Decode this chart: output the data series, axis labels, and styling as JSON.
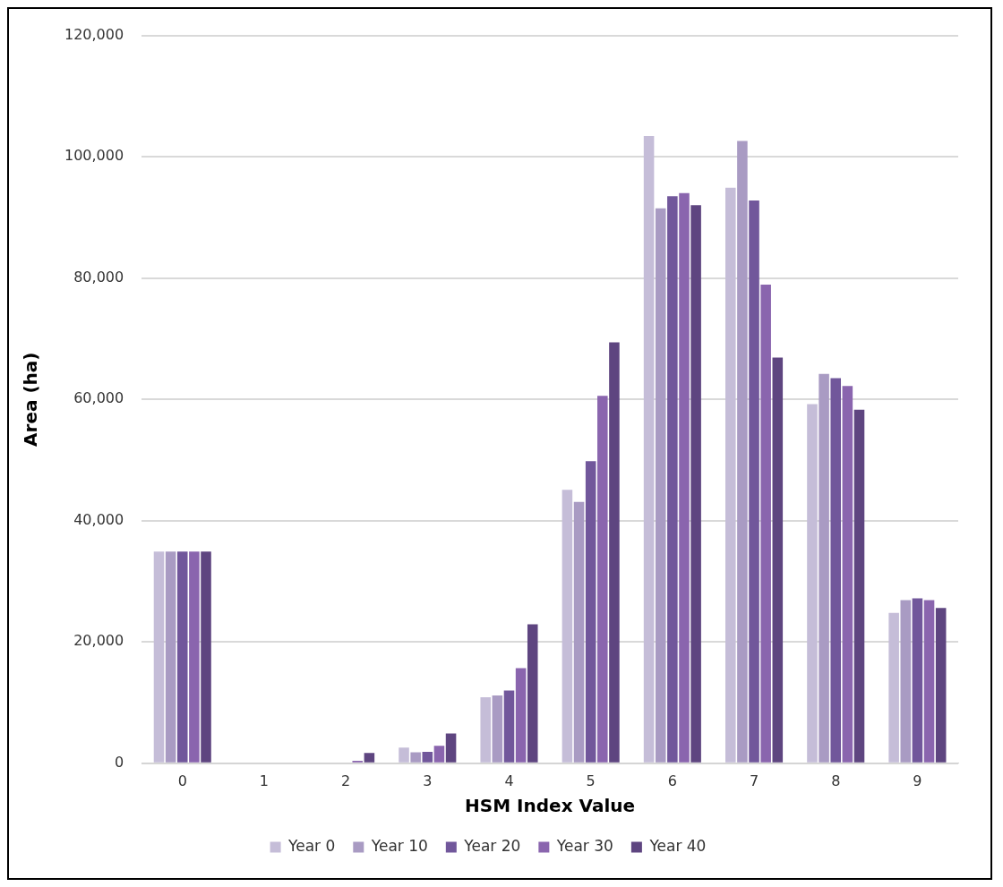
{
  "chart_data": {
    "type": "bar",
    "xlabel": "HSM Index Value",
    "ylabel": "Area (ha)",
    "categories": [
      "0",
      "1",
      "2",
      "3",
      "4",
      "5",
      "6",
      "7",
      "8",
      "9"
    ],
    "series": [
      {
        "name": "Year 0",
        "color": "#c5bdd8",
        "values": [
          34900,
          0,
          0,
          2600,
          10900,
          45100,
          103400,
          94900,
          59200,
          24800
        ]
      },
      {
        "name": "Year 10",
        "color": "#a99bc3",
        "values": [
          34900,
          0,
          0,
          1800,
          11200,
          43100,
          91500,
          102600,
          64200,
          26900
        ]
      },
      {
        "name": "Year 20",
        "color": "#71579b",
        "values": [
          34900,
          0,
          0,
          1900,
          12000,
          49800,
          93500,
          92800,
          63500,
          27200
        ]
      },
      {
        "name": "Year 30",
        "color": "#8a65ae",
        "values": [
          34900,
          0,
          400,
          2900,
          15700,
          60600,
          94000,
          78900,
          62200,
          26900
        ]
      },
      {
        "name": "Year 40",
        "color": "#5e4580",
        "values": [
          34900,
          0,
          1700,
          4900,
          22900,
          69400,
          92000,
          66900,
          58300,
          25600
        ]
      }
    ],
    "ylim": [
      0,
      120000
    ],
    "yticks": [
      0,
      {
        "value": 20000,
        "label": "20,000"
      },
      {
        "value": 40000,
        "label": "40,000"
      },
      {
        "value": 60000,
        "label": "60,000"
      },
      {
        "value": 80000,
        "label": "80,000"
      },
      {
        "value": 100000,
        "label": "100,000"
      },
      {
        "value": 120000,
        "label": "120,000"
      }
    ],
    "grid": "y",
    "legend": "bottom"
  }
}
